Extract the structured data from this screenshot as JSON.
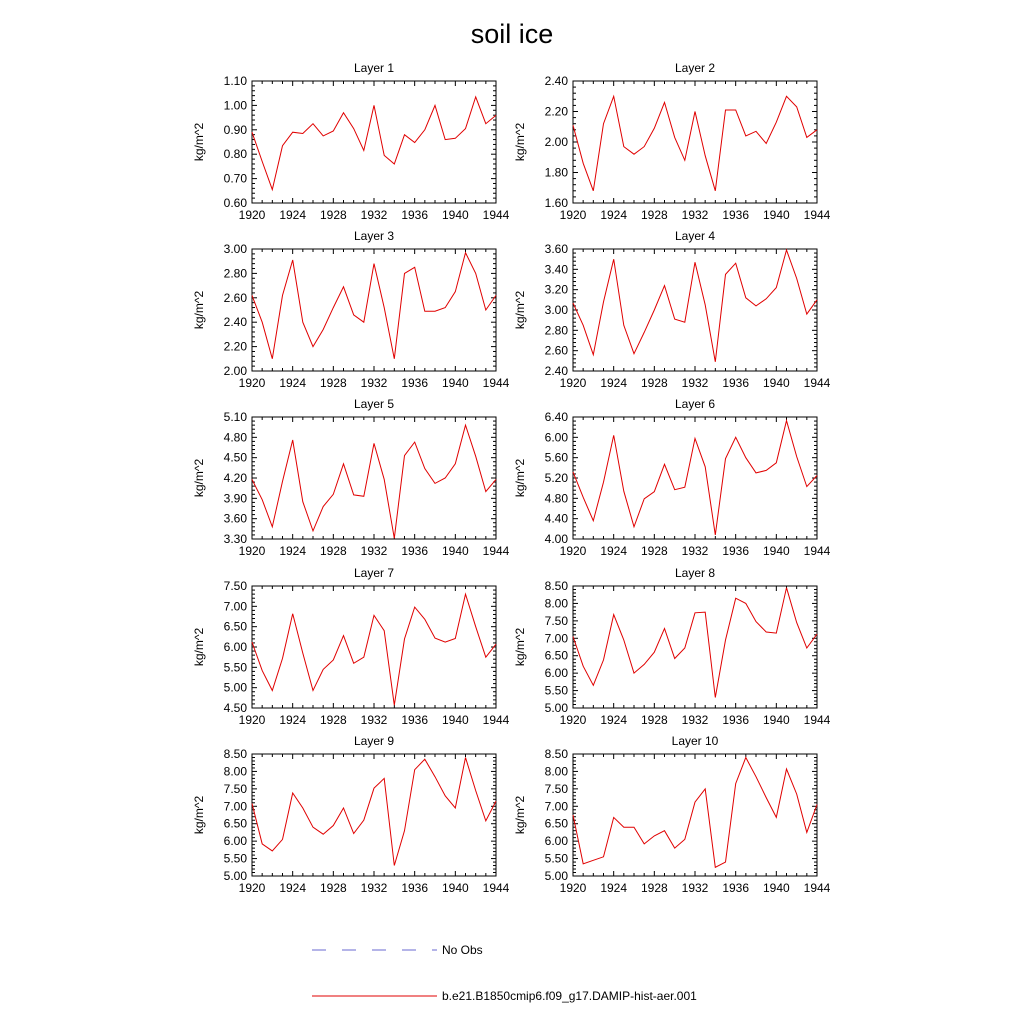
{
  "title": "soil ice",
  "legend": [
    {
      "label": "No Obs",
      "color": "#6a6ad0",
      "style": "dashed"
    },
    {
      "label": "b.e21.B1850cmip6.f09_g17.DAMIP-hist-aer.001",
      "color": "#e00000",
      "style": "solid"
    }
  ],
  "chart_data": [
    {
      "type": "line",
      "title": "Layer 1",
      "ylabel": "kg/m^2",
      "xlim": [
        1920,
        1944
      ],
      "xticks": [
        "1920",
        "1924",
        "1928",
        "1932",
        "1936",
        "1940",
        "1944"
      ],
      "ylim": [
        0.6,
        1.1
      ],
      "yticks": [
        "0.60",
        "0.70",
        "0.80",
        "0.90",
        "1.00",
        "1.10"
      ],
      "series": [
        {
          "color": "#e00000",
          "x": [
            1920,
            1921,
            1922,
            1923,
            1924,
            1925,
            1926,
            1927,
            1928,
            1929,
            1930,
            1931,
            1932,
            1933,
            1934,
            1935,
            1936,
            1937,
            1938,
            1939,
            1940,
            1941,
            1942,
            1943,
            1944
          ],
          "values": [
            0.89,
            0.77,
            0.655,
            0.835,
            0.89,
            0.885,
            0.925,
            0.875,
            0.895,
            0.97,
            0.905,
            0.815,
            1.0,
            0.795,
            0.76,
            0.88,
            0.848,
            0.9,
            1.0,
            0.86,
            0.865,
            0.905,
            1.035,
            0.925,
            0.96
          ]
        }
      ]
    },
    {
      "type": "line",
      "title": "Layer 2",
      "ylabel": "kg/m^2",
      "xlim": [
        1920,
        1944
      ],
      "xticks": [
        "1920",
        "1924",
        "1928",
        "1932",
        "1936",
        "1940",
        "1944"
      ],
      "ylim": [
        1.6,
        2.4
      ],
      "yticks": [
        "1.60",
        "1.80",
        "2.00",
        "2.20",
        "2.40"
      ],
      "series": [
        {
          "color": "#e00000",
          "x": [
            1920,
            1921,
            1922,
            1923,
            1924,
            1925,
            1926,
            1927,
            1928,
            1929,
            1930,
            1931,
            1932,
            1933,
            1934,
            1935,
            1936,
            1937,
            1938,
            1939,
            1940,
            1941,
            1942,
            1943,
            1944
          ],
          "values": [
            2.11,
            1.86,
            1.68,
            2.12,
            2.3,
            1.97,
            1.92,
            1.97,
            2.09,
            2.26,
            2.03,
            1.88,
            2.2,
            1.91,
            1.68,
            2.21,
            2.21,
            2.04,
            2.07,
            1.99,
            2.13,
            2.3,
            2.23,
            2.03,
            2.08
          ]
        }
      ]
    },
    {
      "type": "line",
      "title": "Layer 3",
      "ylabel": "kg/m^2",
      "xlim": [
        1920,
        1944
      ],
      "xticks": [
        "1920",
        "1924",
        "1928",
        "1932",
        "1936",
        "1940",
        "1944"
      ],
      "ylim": [
        2.0,
        3.0
      ],
      "yticks": [
        "2.00",
        "2.20",
        "2.40",
        "2.60",
        "2.80",
        "3.00"
      ],
      "series": [
        {
          "color": "#e00000",
          "x": [
            1920,
            1921,
            1922,
            1923,
            1924,
            1925,
            1926,
            1927,
            1928,
            1929,
            1930,
            1931,
            1932,
            1933,
            1934,
            1935,
            1936,
            1937,
            1938,
            1939,
            1940,
            1941,
            1942,
            1943,
            1944
          ],
          "values": [
            2.62,
            2.4,
            2.1,
            2.62,
            2.91,
            2.4,
            2.2,
            2.34,
            2.52,
            2.69,
            2.46,
            2.4,
            2.88,
            2.52,
            2.1,
            2.8,
            2.85,
            2.49,
            2.49,
            2.52,
            2.65,
            2.97,
            2.8,
            2.5,
            2.62
          ]
        }
      ]
    },
    {
      "type": "line",
      "title": "Layer 4",
      "ylabel": "kg/m^2",
      "xlim": [
        1920,
        1944
      ],
      "xticks": [
        "1920",
        "1924",
        "1928",
        "1932",
        "1936",
        "1940",
        "1944"
      ],
      "ylim": [
        2.4,
        3.6
      ],
      "yticks": [
        "2.40",
        "2.60",
        "2.80",
        "3.00",
        "3.20",
        "3.40",
        "3.60"
      ],
      "series": [
        {
          "color": "#e00000",
          "x": [
            1920,
            1921,
            1922,
            1923,
            1924,
            1925,
            1926,
            1927,
            1928,
            1929,
            1930,
            1931,
            1932,
            1933,
            1934,
            1935,
            1936,
            1937,
            1938,
            1939,
            1940,
            1941,
            1942,
            1943,
            1944
          ],
          "values": [
            3.07,
            2.85,
            2.56,
            3.08,
            3.5,
            2.85,
            2.57,
            2.78,
            3.0,
            3.24,
            2.91,
            2.88,
            3.47,
            3.05,
            2.49,
            3.35,
            3.46,
            3.12,
            3.04,
            3.11,
            3.22,
            3.59,
            3.31,
            2.96,
            3.1
          ]
        }
      ]
    },
    {
      "type": "line",
      "title": "Layer 5",
      "ylabel": "kg/m^2",
      "xlim": [
        1920,
        1944
      ],
      "xticks": [
        "1920",
        "1924",
        "1928",
        "1932",
        "1936",
        "1940",
        "1944"
      ],
      "ylim": [
        3.3,
        5.1
      ],
      "yticks": [
        "3.30",
        "3.60",
        "3.90",
        "4.20",
        "4.50",
        "4.80",
        "5.10"
      ],
      "series": [
        {
          "color": "#e00000",
          "x": [
            1920,
            1921,
            1922,
            1923,
            1924,
            1925,
            1926,
            1927,
            1928,
            1929,
            1930,
            1931,
            1932,
            1933,
            1934,
            1935,
            1936,
            1937,
            1938,
            1939,
            1940,
            1941,
            1942,
            1943,
            1944
          ],
          "values": [
            4.18,
            3.88,
            3.48,
            4.15,
            4.76,
            3.85,
            3.42,
            3.78,
            3.96,
            4.41,
            3.95,
            3.93,
            4.71,
            4.18,
            3.31,
            4.53,
            4.73,
            4.34,
            4.12,
            4.2,
            4.41,
            4.98,
            4.52,
            4.0,
            4.18
          ]
        }
      ]
    },
    {
      "type": "line",
      "title": "Layer 6",
      "ylabel": "kg/m^2",
      "xlim": [
        1920,
        1944
      ],
      "xticks": [
        "1920",
        "1924",
        "1928",
        "1932",
        "1936",
        "1940",
        "1944"
      ],
      "ylim": [
        4.0,
        6.4
      ],
      "yticks": [
        "4.00",
        "4.40",
        "4.80",
        "5.20",
        "5.60",
        "6.00",
        "6.40"
      ],
      "series": [
        {
          "color": "#e00000",
          "x": [
            1920,
            1921,
            1922,
            1923,
            1924,
            1925,
            1926,
            1927,
            1928,
            1929,
            1930,
            1931,
            1932,
            1933,
            1934,
            1935,
            1936,
            1937,
            1938,
            1939,
            1940,
            1941,
            1942,
            1943,
            1944
          ],
          "values": [
            5.32,
            4.82,
            4.36,
            5.12,
            6.04,
            4.94,
            4.24,
            4.79,
            4.93,
            5.47,
            4.97,
            5.02,
            5.98,
            5.42,
            4.08,
            5.58,
            6.0,
            5.6,
            5.3,
            5.35,
            5.5,
            6.33,
            5.62,
            5.03,
            5.25
          ]
        }
      ]
    },
    {
      "type": "line",
      "title": "Layer 7",
      "ylabel": "kg/m^2",
      "xlim": [
        1920,
        1944
      ],
      "xticks": [
        "1920",
        "1924",
        "1928",
        "1932",
        "1936",
        "1940",
        "1944"
      ],
      "ylim": [
        4.5,
        7.5
      ],
      "yticks": [
        "4.50",
        "5.00",
        "5.50",
        "6.00",
        "6.50",
        "7.00",
        "7.50"
      ],
      "series": [
        {
          "color": "#e00000",
          "x": [
            1920,
            1921,
            1922,
            1923,
            1924,
            1925,
            1926,
            1927,
            1928,
            1929,
            1930,
            1931,
            1932,
            1933,
            1934,
            1935,
            1936,
            1937,
            1938,
            1939,
            1940,
            1941,
            1942,
            1943,
            1944
          ],
          "values": [
            6.12,
            5.42,
            4.93,
            5.72,
            6.82,
            5.85,
            4.93,
            5.45,
            5.68,
            6.28,
            5.6,
            5.75,
            6.78,
            6.4,
            4.57,
            6.2,
            6.98,
            6.68,
            6.22,
            6.12,
            6.21,
            7.3,
            6.5,
            5.75,
            6.07
          ]
        }
      ]
    },
    {
      "type": "line",
      "title": "Layer 8",
      "ylabel": "kg/m^2",
      "xlim": [
        1920,
        1944
      ],
      "xticks": [
        "1920",
        "1924",
        "1928",
        "1932",
        "1936",
        "1940",
        "1944"
      ],
      "ylim": [
        5.0,
        8.5
      ],
      "yticks": [
        "5.00",
        "5.50",
        "6.00",
        "6.50",
        "7.00",
        "7.50",
        "8.00",
        "8.50"
      ],
      "series": [
        {
          "color": "#e00000",
          "x": [
            1920,
            1921,
            1922,
            1923,
            1924,
            1925,
            1926,
            1927,
            1928,
            1929,
            1930,
            1931,
            1932,
            1933,
            1934,
            1935,
            1936,
            1937,
            1938,
            1939,
            1940,
            1941,
            1942,
            1943,
            1944
          ],
          "values": [
            7.05,
            6.2,
            5.65,
            6.38,
            7.68,
            6.95,
            6.0,
            6.25,
            6.6,
            7.28,
            6.42,
            6.72,
            7.73,
            7.75,
            5.3,
            6.95,
            8.15,
            8.0,
            7.48,
            7.18,
            7.15,
            8.45,
            7.45,
            6.72,
            7.12
          ]
        }
      ]
    },
    {
      "type": "line",
      "title": "Layer 9",
      "ylabel": "kg/m^2",
      "xlim": [
        1920,
        1944
      ],
      "xticks": [
        "1920",
        "1924",
        "1928",
        "1932",
        "1936",
        "1940",
        "1944"
      ],
      "ylim": [
        5.0,
        8.5
      ],
      "yticks": [
        "5.00",
        "5.50",
        "6.00",
        "6.50",
        "7.00",
        "7.50",
        "8.00",
        "8.50"
      ],
      "series": [
        {
          "color": "#e00000",
          "x": [
            1920,
            1921,
            1922,
            1923,
            1924,
            1925,
            1926,
            1927,
            1928,
            1929,
            1930,
            1931,
            1932,
            1933,
            1934,
            1935,
            1936,
            1937,
            1938,
            1939,
            1940,
            1941,
            1942,
            1943,
            1944
          ],
          "values": [
            7.08,
            5.92,
            5.72,
            6.05,
            7.38,
            6.95,
            6.4,
            6.2,
            6.45,
            6.95,
            6.22,
            6.6,
            7.52,
            7.8,
            5.3,
            6.3,
            8.05,
            8.35,
            7.85,
            7.3,
            6.95,
            8.4,
            7.45,
            6.58,
            7.15
          ]
        }
      ]
    },
    {
      "type": "line",
      "title": "Layer 10",
      "ylabel": "kg/m^2",
      "xlim": [
        1920,
        1944
      ],
      "xticks": [
        "1920",
        "1924",
        "1928",
        "1932",
        "1936",
        "1940",
        "1944"
      ],
      "ylim": [
        5.0,
        8.5
      ],
      "yticks": [
        "5.00",
        "5.50",
        "6.00",
        "6.50",
        "7.00",
        "7.50",
        "8.00",
        "8.50"
      ],
      "series": [
        {
          "color": "#e00000",
          "x": [
            1920,
            1921,
            1922,
            1923,
            1924,
            1925,
            1926,
            1927,
            1928,
            1929,
            1930,
            1931,
            1932,
            1933,
            1934,
            1935,
            1936,
            1937,
            1938,
            1939,
            1940,
            1941,
            1942,
            1943,
            1944
          ],
          "values": [
            6.75,
            5.35,
            5.45,
            5.55,
            6.68,
            6.4,
            6.4,
            5.92,
            6.15,
            6.3,
            5.8,
            6.05,
            7.12,
            7.5,
            5.25,
            5.4,
            7.65,
            8.4,
            7.85,
            7.25,
            6.68,
            8.07,
            7.35,
            6.25,
            7.05
          ]
        }
      ]
    }
  ]
}
